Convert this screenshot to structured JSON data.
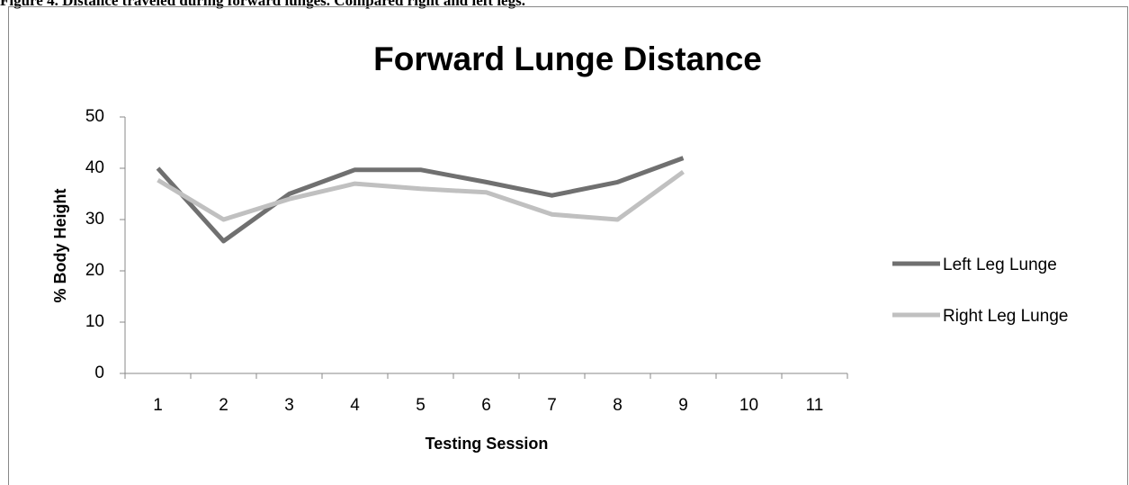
{
  "caption": "Figure 4. Distance traveled during forward lunges.  Compared right and left legs.",
  "chart_data": {
    "type": "line",
    "title": "Forward Lunge Distance",
    "x_label": "Testing Session",
    "y_label": "% Body Height",
    "categories": [
      "1",
      "2",
      "3",
      "4",
      "5",
      "6",
      "7",
      "8",
      "9",
      "10",
      "11"
    ],
    "series": [
      {
        "name": "Left Leg Lunge",
        "color": "#707070",
        "values": [
          40,
          25.8,
          35,
          39.7,
          39.7,
          37.3,
          34.7,
          37.3,
          42,
          null,
          null
        ]
      },
      {
        "name": "Right Leg Lunge",
        "color": "#c0c0c0",
        "values": [
          37.7,
          30,
          34,
          37,
          36,
          35.3,
          31,
          30,
          39.3,
          null,
          null
        ]
      }
    ],
    "ylim": [
      0,
      50
    ],
    "yticks": [
      0,
      10,
      20,
      30,
      40,
      50
    ],
    "grid": false,
    "legend": "right"
  }
}
